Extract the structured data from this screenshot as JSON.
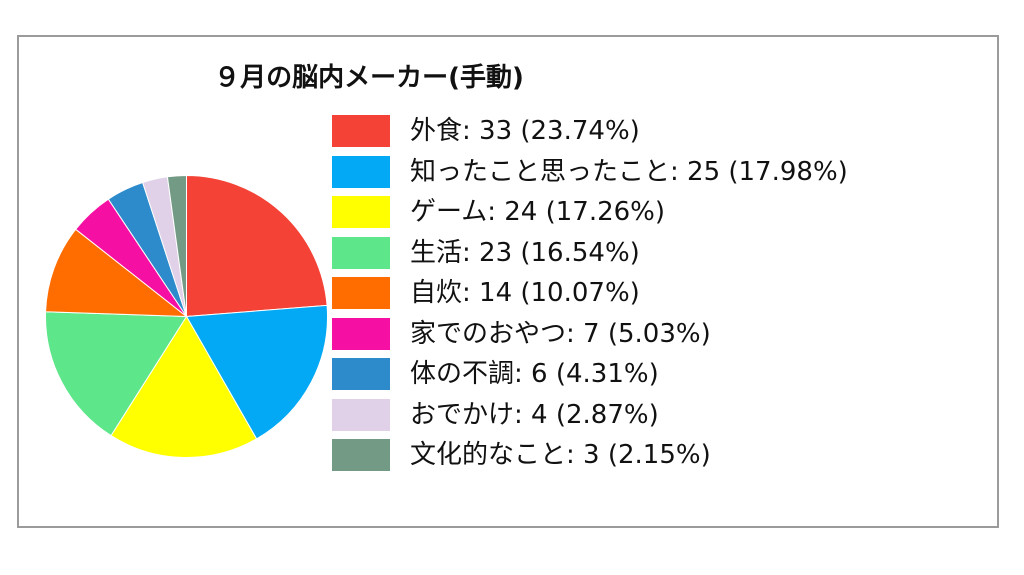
{
  "chart_data": {
    "type": "pie",
    "title": "９月の脳内メーカー(手動)",
    "slices": [
      {
        "label": "外食",
        "value": 33,
        "percent": "23.74%",
        "color": "#f44336",
        "legend": "外食: 33 (23.74%)"
      },
      {
        "label": "知ったこと思ったこと",
        "value": 25,
        "percent": "17.98%",
        "color": "#03a9f4",
        "legend": "知ったこと思ったこと: 25 (17.98%)"
      },
      {
        "label": "ゲーム",
        "value": 24,
        "percent": "17.26%",
        "color": "#ffff00",
        "legend": "ゲーム: 24 (17.26%)"
      },
      {
        "label": "生活",
        "value": 23,
        "percent": "16.54%",
        "color": "#5de68a",
        "legend": "生活: 23 (16.54%)"
      },
      {
        "label": "自炊",
        "value": 14,
        "percent": "10.07%",
        "color": "#ff6d00",
        "legend": "自炊: 14 (10.07%)"
      },
      {
        "label": "家でのおやつ",
        "value": 7,
        "percent": "5.03%",
        "color": "#f50fa3",
        "legend": "家でのおやつ: 7 (5.03%)"
      },
      {
        "label": "体の不調",
        "value": 6,
        "percent": "4.31%",
        "color": "#2d8bcb",
        "legend": "体の不調: 6 (4.31%)"
      },
      {
        "label": "おでかけ",
        "value": 4,
        "percent": "2.87%",
        "color": "#e0d1e8",
        "legend": "おでかけ: 4 (2.87%)"
      },
      {
        "label": "文化的なこと",
        "value": 3,
        "percent": "2.15%",
        "color": "#739a84",
        "legend": "文化的なこと: 3 (2.15%)"
      }
    ],
    "legend_position": "right"
  }
}
